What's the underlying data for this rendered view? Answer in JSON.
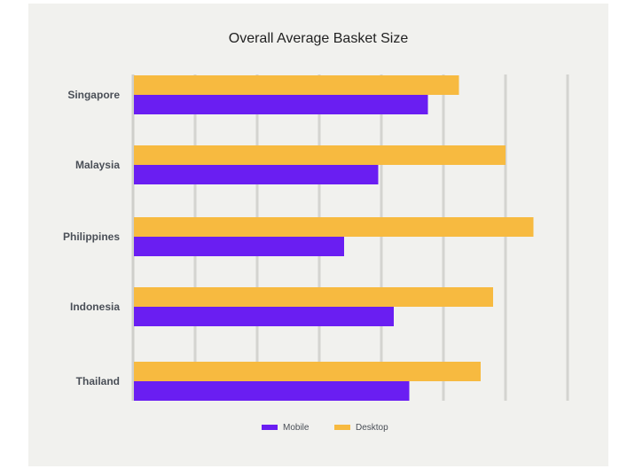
{
  "chart_data": {
    "type": "bar",
    "orientation": "horizontal",
    "title": "Overall Average Basket Size",
    "categories": [
      "Singapore",
      "Malaysia",
      "Philippines",
      "Indonesia",
      "Thailand"
    ],
    "series": [
      {
        "name": "Desktop",
        "color": "#f7ba40",
        "values": [
          52.5,
          60,
          64.5,
          58,
          56
        ]
      },
      {
        "name": "Mobile",
        "color": "#6a1ef2",
        "values": [
          47.5,
          39.5,
          34,
          42,
          44.5
        ]
      }
    ],
    "xlim": [
      0,
      70
    ],
    "grid_step": 10,
    "grid": true,
    "x_tick_labels": false,
    "legend": {
      "position": "bottom",
      "order": [
        "Mobile",
        "Desktop"
      ]
    }
  }
}
